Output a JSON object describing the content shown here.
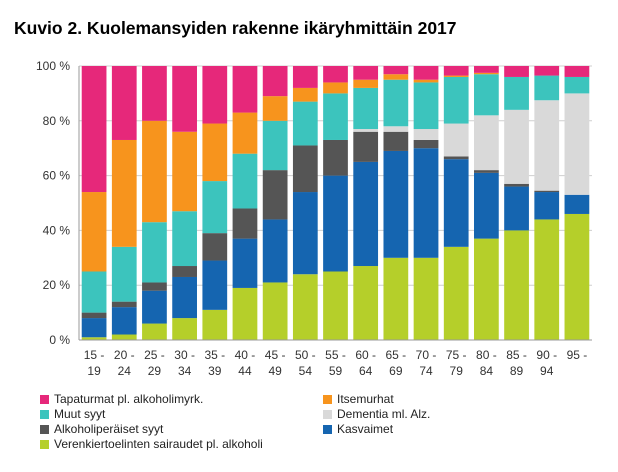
{
  "chart_data": {
    "type": "bar",
    "stacked": true,
    "title": "Kuvio 2. Kuolemansyiden rakenne ikäryhmittäin 2017",
    "xlabel": "",
    "ylabel": "",
    "ylim": [
      0,
      100
    ],
    "yticks": [
      "0 %",
      "20 %",
      "40 %",
      "60 %",
      "80 %",
      "100 %"
    ],
    "grid": true,
    "legend_position": "bottom",
    "categories": [
      [
        "15 -",
        "19"
      ],
      [
        "20 -",
        "24"
      ],
      [
        "25 -",
        "29"
      ],
      [
        "30 -",
        "34"
      ],
      [
        "35 -",
        "39"
      ],
      [
        "40 -",
        "44"
      ],
      [
        "45 -",
        "49"
      ],
      [
        "50 -",
        "54"
      ],
      [
        "55 -",
        "59"
      ],
      [
        "60 -",
        "64"
      ],
      [
        "65 -",
        "69"
      ],
      [
        "70 -",
        "74"
      ],
      [
        "75 -",
        "79"
      ],
      [
        "80 -",
        "84"
      ],
      [
        "85 -",
        "89"
      ],
      [
        "90 -",
        "94"
      ],
      [
        "95 -",
        ""
      ]
    ],
    "series": [
      {
        "name": "Verenkiertoelinten sairaudet pl. alkoholi",
        "color": "#b5cf2a",
        "values": [
          1,
          2,
          6,
          8,
          11,
          19,
          21,
          24,
          25,
          27,
          30,
          30,
          34,
          37,
          40,
          44,
          46
        ]
      },
      {
        "name": "Kasvaimet",
        "color": "#1565b0",
        "values": [
          7,
          10,
          12,
          15,
          18,
          18,
          23,
          30,
          35,
          38,
          39,
          40,
          32,
          24,
          16,
          10,
          7
        ]
      },
      {
        "name": "Alkoholiperäiset syyt",
        "color": "#555555",
        "values": [
          2,
          2,
          3,
          4,
          10,
          11,
          18,
          17,
          13,
          11,
          7,
          3,
          1,
          1,
          1,
          0.5,
          0
        ]
      },
      {
        "name": "Dementia ml. Alz.",
        "color": "#d9d9d9",
        "values": [
          0,
          0,
          0,
          0,
          0,
          0,
          0,
          0,
          0,
          1,
          2,
          4,
          12,
          20,
          27,
          33,
          37
        ]
      },
      {
        "name": "Muut  syyt",
        "color": "#3cc4bd",
        "values": [
          15,
          20,
          22,
          20,
          19,
          20,
          18,
          16,
          17,
          15,
          17,
          17,
          17,
          15,
          12,
          9,
          6
        ]
      },
      {
        "name": "Itsemurhat",
        "color": "#f7941d",
        "values": [
          29,
          39,
          37,
          29,
          21,
          15,
          9,
          5,
          4,
          3,
          2,
          1,
          0.5,
          0.5,
          0,
          0,
          0
        ]
      },
      {
        "name": "Tapaturmat pl. alkoholimyrk.",
        "color": "#e6287a",
        "values": [
          46,
          27,
          20,
          24,
          21,
          17,
          11,
          8,
          6,
          5,
          3,
          5,
          3.5,
          2.5,
          4,
          3.5,
          4
        ]
      }
    ]
  },
  "legend": [
    {
      "label": "Tapaturmat pl. alkoholimyrk.",
      "color": "#e6287a"
    },
    {
      "label": "Itsemurhat",
      "color": "#f7941d"
    },
    {
      "label": "Muut  syyt",
      "color": "#3cc4bd"
    },
    {
      "label": "Dementia ml. Alz.",
      "color": "#d9d9d9"
    },
    {
      "label": "Alkoholiperäiset syyt",
      "color": "#555555"
    },
    {
      "label": "Kasvaimet",
      "color": "#1565b0"
    },
    {
      "label": "Verenkiertoelinten sairaudet pl. alkoholi",
      "color": "#b5cf2a"
    }
  ]
}
